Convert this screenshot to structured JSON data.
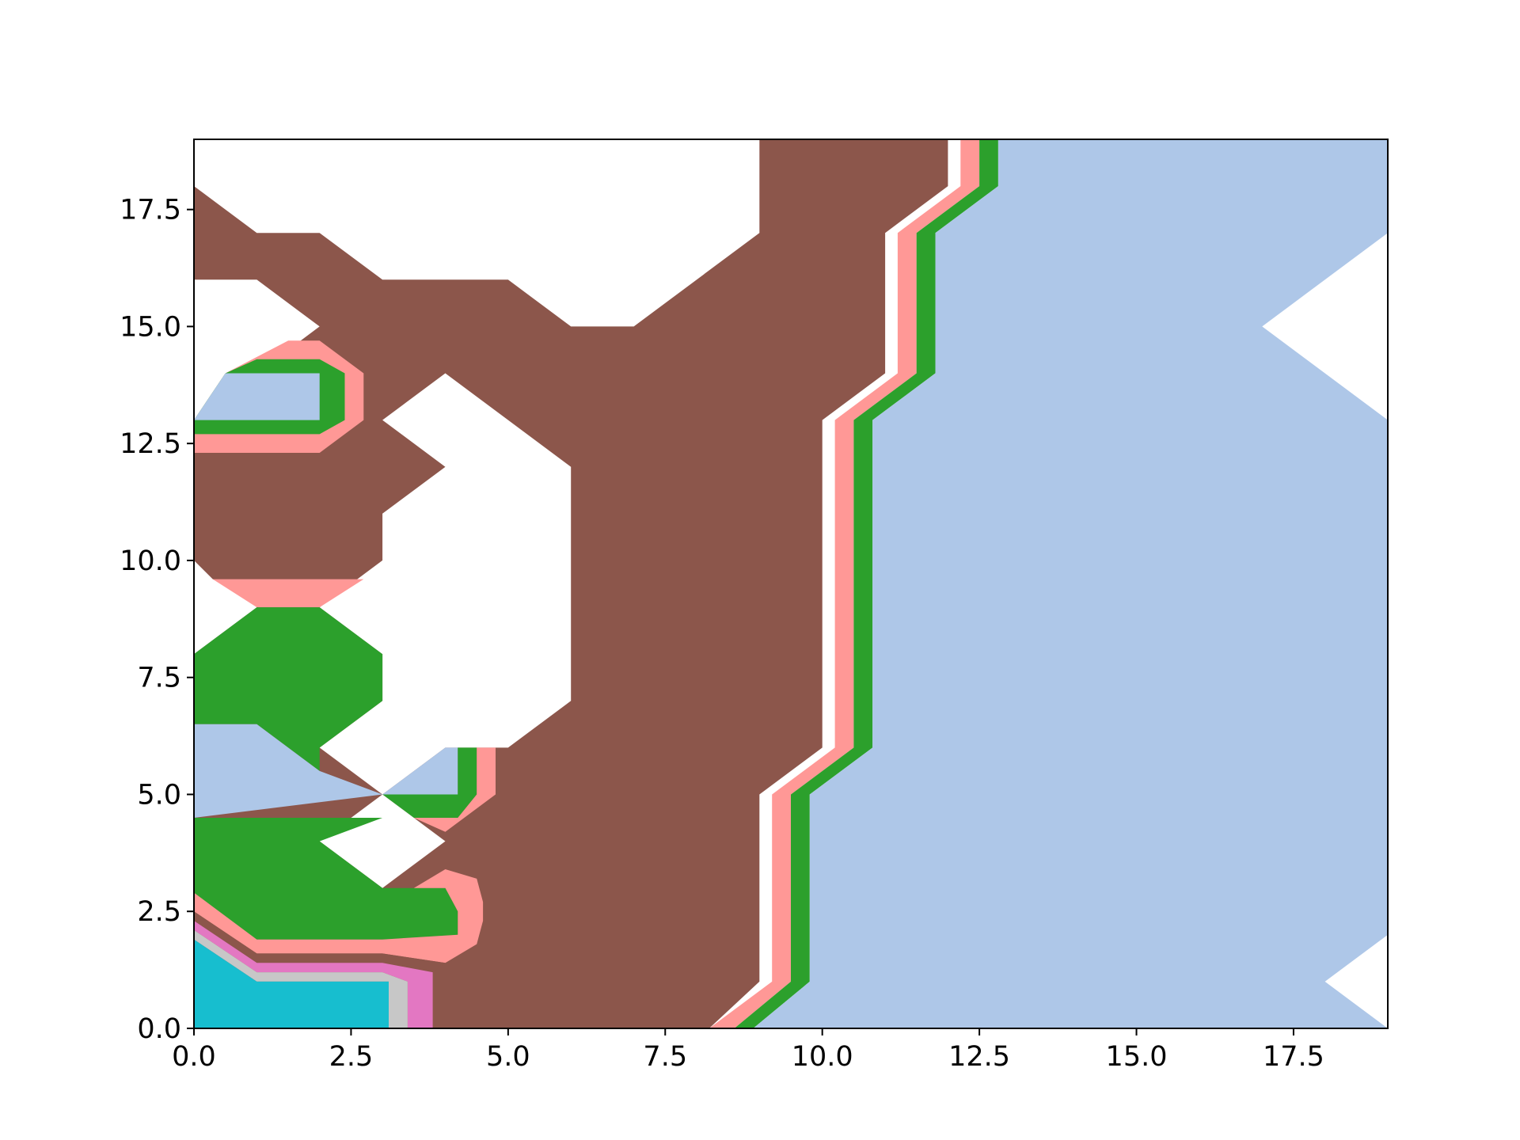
{
  "chart_data": {
    "type": "contourf",
    "title": "",
    "xlabel": "",
    "ylabel": "",
    "xlim": [
      0,
      19
    ],
    "ylim": [
      0,
      19
    ],
    "grid": false,
    "legend": "none",
    "x_ticks": [
      0.0,
      2.5,
      5.0,
      7.5,
      10.0,
      12.5,
      15.0,
      17.5
    ],
    "x_tick_labels": [
      "0.0",
      "2.5",
      "5.0",
      "7.5",
      "10.0",
      "12.5",
      "15.0",
      "17.5"
    ],
    "y_ticks": [
      0.0,
      2.5,
      5.0,
      7.5,
      10.0,
      12.5,
      15.0,
      17.5
    ],
    "y_tick_labels": [
      "0.0",
      "2.5",
      "5.0",
      "7.5",
      "10.0",
      "12.5",
      "15.0",
      "17.5"
    ],
    "colors": {
      "light_blue": "#aec7e8",
      "brown": "#8c564b",
      "green": "#2ca02c",
      "pink": "#ff9896",
      "orchid": "#e377c2",
      "gray": "#c7c7c7",
      "cyan": "#17becf",
      "white": "#ffffff"
    },
    "regions": [
      {
        "color": "brown",
        "points": [
          [
            0,
            0
          ],
          [
            8.2,
            0
          ],
          [
            9,
            1
          ],
          [
            9,
            5
          ],
          [
            10,
            6
          ],
          [
            10,
            13
          ],
          [
            11,
            14
          ],
          [
            11,
            17
          ],
          [
            12,
            18
          ],
          [
            12,
            19
          ],
          [
            0,
            19
          ]
        ]
      },
      {
        "color": "pink",
        "points": [
          [
            8.2,
            0
          ],
          [
            8.6,
            0
          ],
          [
            9.5,
            1
          ],
          [
            9.5,
            5
          ],
          [
            10.5,
            6
          ],
          [
            10.5,
            13
          ],
          [
            11.5,
            14
          ],
          [
            11.5,
            17
          ],
          [
            12.5,
            18
          ],
          [
            12.5,
            19
          ],
          [
            12.2,
            19
          ],
          [
            12.2,
            18
          ],
          [
            11.2,
            17
          ],
          [
            11.2,
            14
          ],
          [
            10.2,
            13
          ],
          [
            10.2,
            6
          ],
          [
            9.2,
            5
          ],
          [
            9.2,
            1
          ]
        ]
      },
      {
        "color": "green",
        "points": [
          [
            8.6,
            0
          ],
          [
            8.9,
            0
          ],
          [
            9.8,
            1
          ],
          [
            9.8,
            5
          ],
          [
            10.8,
            6
          ],
          [
            10.8,
            13
          ],
          [
            11.8,
            14
          ],
          [
            11.8,
            17
          ],
          [
            12.8,
            18
          ],
          [
            12.8,
            19
          ],
          [
            12.5,
            19
          ],
          [
            12.5,
            18
          ],
          [
            11.5,
            17
          ],
          [
            11.5,
            14
          ],
          [
            10.5,
            13
          ],
          [
            10.5,
            6
          ],
          [
            9.5,
            5
          ],
          [
            9.5,
            1
          ]
        ]
      },
      {
        "color": "light_blue",
        "points": [
          [
            8.9,
            0
          ],
          [
            19,
            0
          ],
          [
            19,
            19
          ],
          [
            12.8,
            19
          ],
          [
            12.8,
            18
          ],
          [
            11.8,
            17
          ],
          [
            11.8,
            14
          ],
          [
            10.8,
            13
          ],
          [
            10.8,
            6
          ],
          [
            9.8,
            5
          ],
          [
            9.8,
            1
          ]
        ]
      },
      {
        "color": "white",
        "points": [
          [
            19,
            17
          ],
          [
            17,
            15
          ],
          [
            19,
            13
          ]
        ]
      },
      {
        "color": "white",
        "points": [
          [
            19,
            2
          ],
          [
            18,
            1
          ],
          [
            19,
            0
          ]
        ]
      },
      {
        "color": "white",
        "points": [
          [
            0,
            18
          ],
          [
            1,
            17
          ],
          [
            2,
            17
          ],
          [
            3,
            16
          ],
          [
            5,
            16
          ],
          [
            6,
            15
          ],
          [
            7,
            15
          ],
          [
            9,
            17
          ],
          [
            9,
            19
          ],
          [
            0,
            19
          ]
        ]
      },
      {
        "color": "white",
        "points": [
          [
            0,
            16
          ],
          [
            1,
            16
          ],
          [
            2,
            15
          ],
          [
            1,
            14
          ],
          [
            0,
            13
          ]
        ]
      },
      {
        "color": "pink",
        "points": [
          [
            0,
            12.3
          ],
          [
            2,
            12.3
          ],
          [
            2.7,
            13
          ],
          [
            2.7,
            14
          ],
          [
            2,
            14.7
          ],
          [
            1.5,
            14.7
          ],
          [
            0.5,
            14
          ],
          [
            0,
            13
          ]
        ]
      },
      {
        "color": "green",
        "points": [
          [
            0,
            12.7
          ],
          [
            2,
            12.7
          ],
          [
            2.4,
            13
          ],
          [
            2.4,
            14
          ],
          [
            2,
            14.3
          ],
          [
            1,
            14.3
          ],
          [
            0.5,
            14
          ],
          [
            0,
            13
          ]
        ]
      },
      {
        "color": "light_blue",
        "points": [
          [
            0,
            13
          ],
          [
            0.5,
            14
          ],
          [
            2,
            14
          ],
          [
            2,
            13
          ]
        ]
      },
      {
        "color": "white",
        "points": [
          [
            3,
            13
          ],
          [
            4,
            14
          ],
          [
            6,
            12
          ],
          [
            6,
            7
          ],
          [
            5,
            6
          ],
          [
            4,
            6
          ],
          [
            3,
            5
          ],
          [
            2,
            6
          ],
          [
            3,
            7
          ],
          [
            3,
            8
          ],
          [
            2,
            9
          ],
          [
            3,
            10
          ],
          [
            3,
            11
          ],
          [
            4,
            12
          ]
        ]
      },
      {
        "color": "pink",
        "points": [
          [
            0,
            9.6
          ],
          [
            2.7,
            9.6
          ],
          [
            2,
            9
          ],
          [
            1,
            9
          ]
        ]
      },
      {
        "color": "white",
        "points": [
          [
            0,
            10
          ],
          [
            0.3,
            9.6
          ],
          [
            1,
            9
          ],
          [
            0,
            8
          ]
        ]
      },
      {
        "color": "green",
        "points": [
          [
            0,
            8
          ],
          [
            1,
            9
          ],
          [
            2,
            9
          ],
          [
            3,
            8
          ],
          [
            3,
            7
          ],
          [
            2,
            6
          ],
          [
            2,
            5.5
          ],
          [
            1,
            6.5
          ],
          [
            0,
            6.5
          ]
        ]
      },
      {
        "color": "light_blue",
        "points": [
          [
            0,
            6.5
          ],
          [
            1,
            6.5
          ],
          [
            2,
            5.5
          ],
          [
            3,
            5
          ],
          [
            4,
            6
          ],
          [
            4.2,
            6
          ],
          [
            4.2,
            5
          ],
          [
            3,
            5
          ],
          [
            0,
            4.5
          ]
        ]
      },
      {
        "color": "green",
        "points": [
          [
            4.2,
            6
          ],
          [
            4.5,
            6
          ],
          [
            4.5,
            5
          ],
          [
            4.2,
            4.5
          ],
          [
            3.5,
            4.5
          ],
          [
            3,
            5
          ],
          [
            4,
            5
          ],
          [
            4.2,
            5
          ]
        ]
      },
      {
        "color": "pink",
        "points": [
          [
            4.5,
            6
          ],
          [
            4.8,
            6
          ],
          [
            4.8,
            5
          ],
          [
            4,
            4.2
          ],
          [
            3.5,
            4.5
          ],
          [
            4.2,
            4.5
          ],
          [
            4.5,
            5
          ]
        ]
      },
      {
        "color": "white",
        "points": [
          [
            2,
            4
          ],
          [
            3,
            5
          ],
          [
            4,
            4
          ],
          [
            3,
            3
          ]
        ]
      },
      {
        "color": "green",
        "points": [
          [
            0,
            4.5
          ],
          [
            3,
            4.5
          ],
          [
            2,
            4
          ],
          [
            3,
            3
          ],
          [
            4,
            3
          ],
          [
            4.2,
            2.5
          ],
          [
            4.2,
            2
          ],
          [
            3,
            1.9
          ],
          [
            1,
            1.9
          ],
          [
            0,
            2.7
          ]
        ]
      },
      {
        "color": "pink",
        "points": [
          [
            0,
            2.9
          ],
          [
            1,
            1.9
          ],
          [
            3,
            1.9
          ],
          [
            4.2,
            2
          ],
          [
            4.2,
            2.5
          ],
          [
            4,
            3
          ],
          [
            3.5,
            3
          ],
          [
            4,
            3.4
          ],
          [
            4.5,
            3.2
          ],
          [
            4.6,
            2.7
          ],
          [
            4.6,
            2.3
          ],
          [
            4.5,
            1.8
          ],
          [
            4,
            1.4
          ],
          [
            3,
            1.6
          ],
          [
            1,
            1.6
          ],
          [
            0,
            2.5
          ]
        ]
      },
      {
        "color": "brown",
        "points": [
          [
            0,
            2.5
          ],
          [
            1,
            1.6
          ],
          [
            3,
            1.6
          ],
          [
            4,
            1.4
          ],
          [
            3.8,
            1.2
          ],
          [
            3,
            1.4
          ],
          [
            1,
            1.4
          ],
          [
            0,
            2.3
          ]
        ]
      },
      {
        "color": "orchid",
        "points": [
          [
            0,
            2.3
          ],
          [
            1,
            1.4
          ],
          [
            3,
            1.4
          ],
          [
            3.8,
            1.2
          ],
          [
            3.8,
            0
          ],
          [
            3.4,
            0
          ],
          [
            3.4,
            1
          ],
          [
            3,
            1.2
          ],
          [
            1,
            1.2
          ],
          [
            0,
            2.1
          ]
        ]
      },
      {
        "color": "gray",
        "points": [
          [
            0,
            2.1
          ],
          [
            1,
            1.2
          ],
          [
            3,
            1.2
          ],
          [
            3.4,
            1
          ],
          [
            3.4,
            0
          ],
          [
            3.1,
            0
          ],
          [
            3.1,
            1
          ],
          [
            1,
            1
          ],
          [
            0,
            1.9
          ]
        ]
      },
      {
        "color": "cyan",
        "points": [
          [
            0,
            0
          ],
          [
            3.1,
            0
          ],
          [
            3.1,
            1
          ],
          [
            1,
            1
          ],
          [
            0,
            1.9
          ]
        ]
      }
    ]
  }
}
